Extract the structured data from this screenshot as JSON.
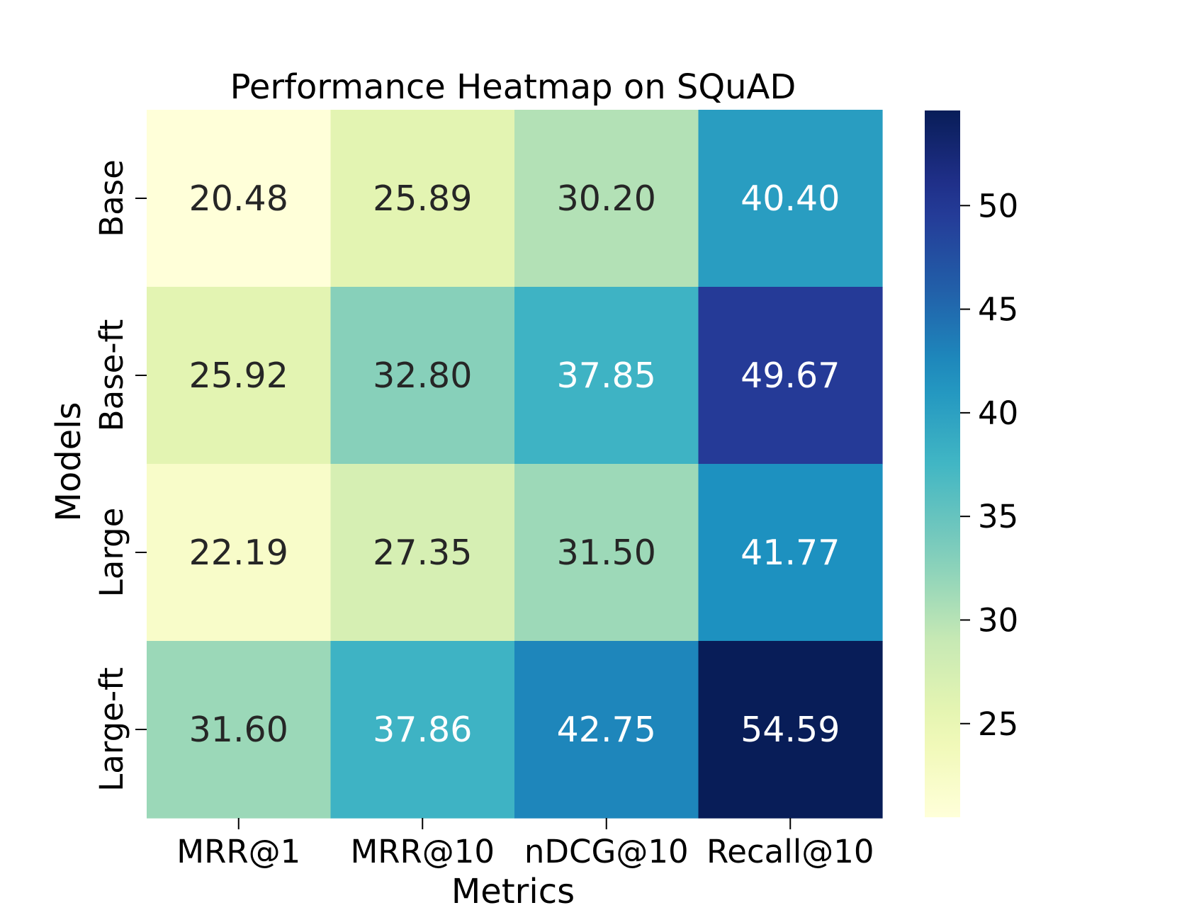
{
  "chart_data": {
    "type": "heatmap",
    "title": "Performance Heatmap on SQuAD",
    "xlabel": "Metrics",
    "ylabel": "Models",
    "columns": [
      "MRR@1",
      "MRR@10",
      "nDCG@10",
      "Recall@10"
    ],
    "rows": [
      "Base",
      "Base-ft",
      "Large",
      "Large-ft"
    ],
    "values": [
      [
        20.48,
        25.89,
        30.2,
        40.4
      ],
      [
        25.92,
        32.8,
        37.85,
        49.67
      ],
      [
        22.19,
        27.35,
        31.5,
        41.77
      ],
      [
        31.6,
        37.86,
        42.75,
        54.59
      ]
    ],
    "labels": [
      [
        "20.48",
        "25.89",
        "30.20",
        "40.40"
      ],
      [
        "25.92",
        "32.80",
        "37.85",
        "49.67"
      ],
      [
        "22.19",
        "27.35",
        "31.50",
        "41.77"
      ],
      [
        "31.60",
        "37.86",
        "42.75",
        "54.59"
      ]
    ],
    "colormap": "YlGnBu",
    "vmin": 20.48,
    "vmax": 54.59,
    "colorbar_ticks": [
      25,
      30,
      35,
      40,
      45,
      50
    ],
    "colorbar_tick_labels": [
      "25",
      "30",
      "35",
      "40",
      "45",
      "50"
    ]
  },
  "colors": {
    "light_text": "#ffffff",
    "dark_text": "#262626",
    "axis": "#000000"
  }
}
